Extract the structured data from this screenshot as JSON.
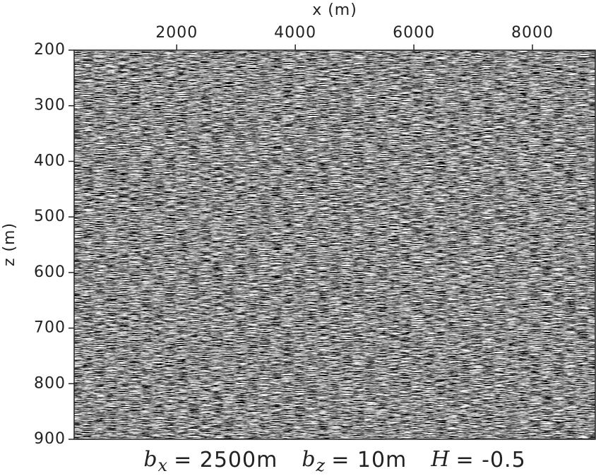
{
  "chart_data": {
    "type": "image",
    "xlabel": "x (m)",
    "ylabel": "z (m)",
    "xlim": [
      270,
      9060
    ],
    "xticks": [
      2000,
      4000,
      6000,
      8000
    ],
    "ylim": [
      200,
      900
    ],
    "yticks": [
      200,
      300,
      400,
      500,
      600,
      700,
      800,
      900
    ],
    "y_inverted": true,
    "x_axis_position": "top",
    "colormap": "gray",
    "caption": [
      {
        "symbol": "b",
        "subscript": "x",
        "text": "= 2500m"
      },
      {
        "symbol": "b",
        "subscript": "z",
        "text": "= 10m"
      },
      {
        "symbol": "H",
        "text": "= -0.5"
      }
    ]
  }
}
